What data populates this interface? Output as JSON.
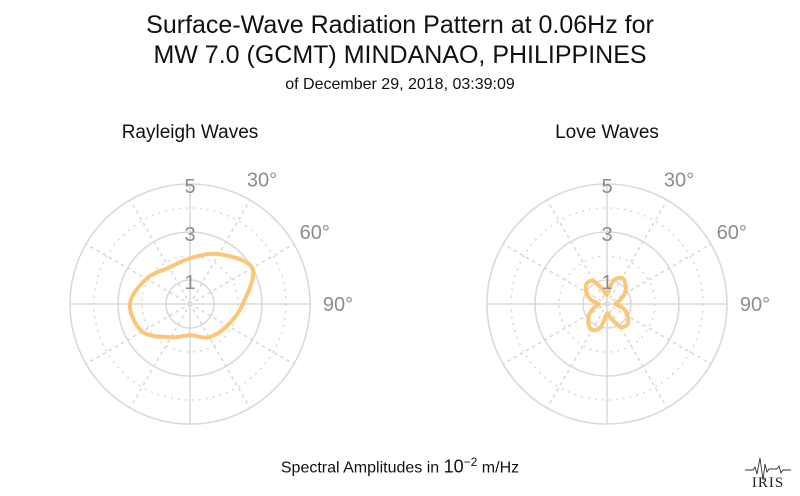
{
  "title": {
    "line1": "Surface-Wave Radiation Pattern at 0.06Hz for",
    "line2": "MW 7.0 (GCMT) MINDANAO, PHILIPPINES",
    "subtitle": "of December 29, 2018, 03:39:09"
  },
  "footer": {
    "prefix": "Spectral Amplitudes in ",
    "base": "10",
    "exponent": "−2",
    "unit": " m/Hz"
  },
  "logo": {
    "text": "IRIS"
  },
  "colors": {
    "pattern": "#fcc679",
    "grid": "#dadada",
    "tick_label": "#8c8c8c"
  },
  "chart_data": [
    {
      "type": "polar-line",
      "title": "Rayleigh Waves",
      "r_ticks": [
        "1",
        "3",
        "5"
      ],
      "r_max": 5,
      "theta_tick_labels": [
        "30°",
        "60°",
        "90°"
      ],
      "theta_ticks_deg": [
        30,
        60,
        90
      ],
      "angle_zero": "up",
      "direction": "clockwise",
      "theta_deg": [
        0,
        30,
        60,
        90,
        120,
        150,
        180,
        210,
        240,
        270,
        300,
        330
      ],
      "r": [
        1.9,
        2.4,
        3.0,
        2.2,
        1.8,
        1.6,
        1.3,
        1.6,
        2.3,
        2.5,
        2.1,
        1.75
      ]
    },
    {
      "type": "polar-line",
      "title": "Love Waves",
      "r_ticks": [
        "1",
        "3",
        "5"
      ],
      "r_max": 5,
      "theta_tick_labels": [
        "30°",
        "60°",
        "90°"
      ],
      "theta_ticks_deg": [
        30,
        60,
        90
      ],
      "angle_zero": "up",
      "direction": "clockwise",
      "theta_deg": [
        0,
        15,
        30,
        45,
        60,
        75,
        90,
        105,
        120,
        135,
        150,
        165,
        180,
        195,
        210,
        225,
        240,
        255,
        270,
        285,
        300,
        315,
        330,
        345
      ],
      "r": [
        0.4,
        1.0,
        1.25,
        1.1,
        0.85,
        0.55,
        0.35,
        0.7,
        1.0,
        1.2,
        1.1,
        0.6,
        0.4,
        1.0,
        1.25,
        1.1,
        0.85,
        0.55,
        0.35,
        0.7,
        1.0,
        1.2,
        1.1,
        0.6
      ]
    }
  ]
}
